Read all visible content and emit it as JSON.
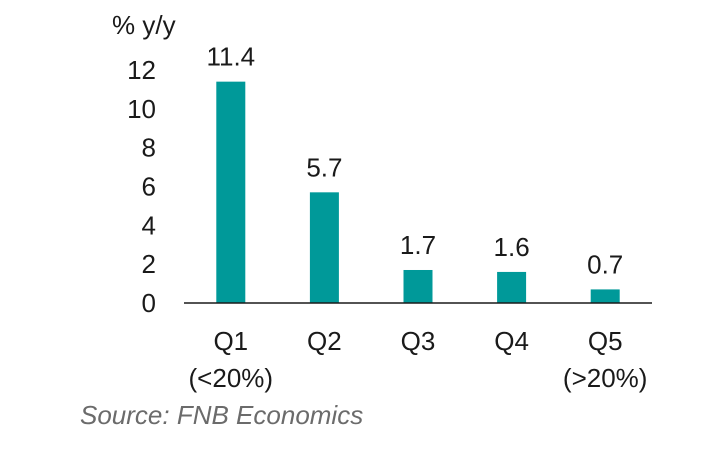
{
  "chart_data": {
    "type": "bar",
    "ylabel": "% y/y",
    "categories": [
      "Q1",
      "Q2",
      "Q3",
      "Q4",
      "Q5"
    ],
    "category_sublabels": [
      "(<20%)",
      "",
      "",
      "",
      "(>20%)"
    ],
    "values": [
      11.4,
      5.7,
      1.7,
      1.6,
      0.7
    ],
    "data_labels": [
      "11.4",
      "5.7",
      "1.7",
      "1.6",
      "0.7"
    ],
    "ylim": [
      0,
      12
    ],
    "yticks": [
      0,
      2,
      4,
      6,
      8,
      10,
      12
    ],
    "grid": false,
    "legend": "none",
    "bar_color": "#009999"
  },
  "source": "Source: FNB Economics"
}
